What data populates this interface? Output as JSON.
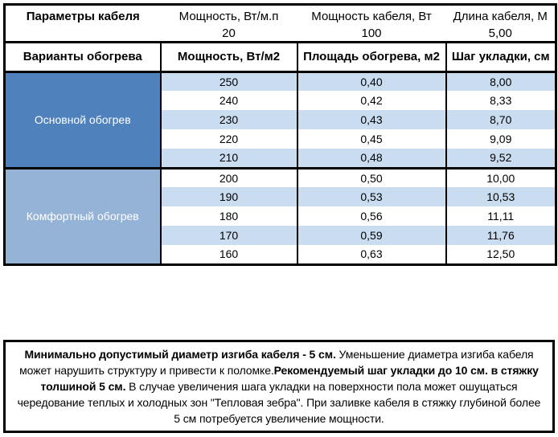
{
  "colors": {
    "group_primary": "#4f81bd",
    "group_comfort": "#95b3d7",
    "row_stripe": "#c9dcf0",
    "border": "#000000",
    "group_text": "#ffffff"
  },
  "top_table": {
    "headers": [
      "Параметры кабеля",
      "Мощность, Вт/м.п",
      "Мощность кабеля, Вт",
      "Длина кабеля, М"
    ],
    "values": [
      "",
      "20",
      "100",
      "5,00"
    ]
  },
  "main_table": {
    "headers": [
      "Варианты обогрева",
      "Мощность, Вт/м2",
      "Площадь обогрева, м2",
      "Шаг укладки, см"
    ],
    "groups": [
      {
        "label": "Основной обогрев",
        "color": "#4f81bd",
        "rows": [
          [
            "250",
            "0,40",
            "8,00"
          ],
          [
            "240",
            "0,42",
            "8,33"
          ],
          [
            "230",
            "0,43",
            "8,70"
          ],
          [
            "220",
            "0,45",
            "9,09"
          ],
          [
            "210",
            "0,48",
            "9,52"
          ]
        ]
      },
      {
        "label": "Комфортный обогрев",
        "color": "#95b3d7",
        "rows": [
          [
            "200",
            "0,50",
            "10,00"
          ],
          [
            "190",
            "0,53",
            "10,53"
          ],
          [
            "180",
            "0,56",
            "11,11"
          ],
          [
            "170",
            "0,59",
            "11,76"
          ],
          [
            "160",
            "0,63",
            "12,50"
          ]
        ]
      }
    ]
  },
  "note": {
    "segments": [
      {
        "text": "Минимально допустимый диаметр изгиба кабеля - 5 см.",
        "bold": true
      },
      {
        "text": "  Уменьшение диаметра изгиба кабеля может нарушить структуру и привести к поломке.",
        "bold": false
      },
      {
        "text": "Рекомендуемый шаг укладки до 10 см. в стяжку толшиной 5 см.",
        "bold": true
      },
      {
        "text": " В  случае увеличения шага укладки на поверхности пола может ошущаться чередование теплых и холодных зон \"Тепловая зебра\". При заливке кабеля в стяжку глубиной более 5 см потребуется увеличение мощности.",
        "bold": false
      }
    ]
  }
}
